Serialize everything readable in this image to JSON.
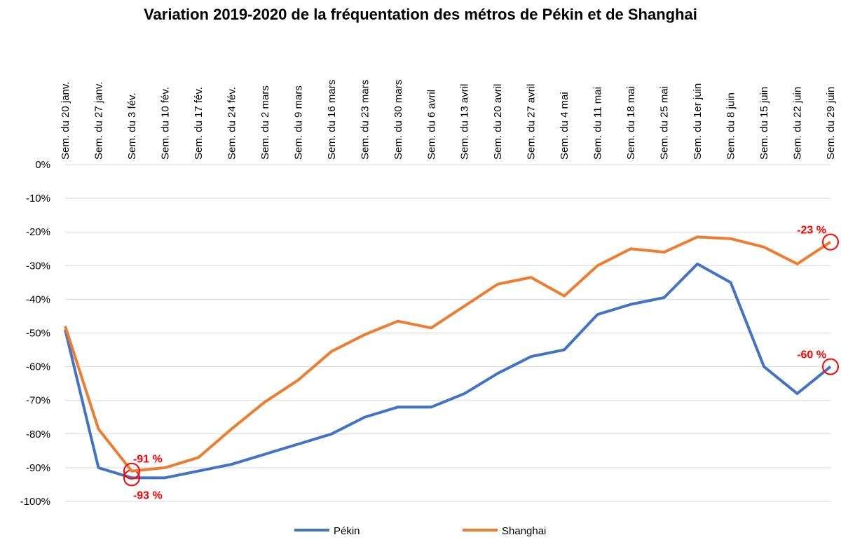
{
  "chart_data": {
    "type": "line",
    "title": "Variation 2019-2020 de la fréquentation des métros de Pékin et de Shanghai",
    "categories": [
      "Sem. du 20 janv.",
      "Sem. du 27 janv.",
      "Sem. du 3 fév.",
      "Sem. du 10 fév.",
      "Sem. du 17 fév.",
      "Sem. du 24 fév.",
      "Sem. du 2 mars",
      "Sem. du 9 mars",
      "Sem. du 16 mars",
      "Sem. du 23 mars",
      "Sem. du 30 mars",
      "Sem. du 6 avril",
      "Sem. du 13 avril",
      "Sem. du 20 avril",
      "Sem. du 27 avril",
      "Sem. du 4 mai",
      "Sem. du 11 mai",
      "Sem. du 18 mai",
      "Sem. du 25 mai",
      "Sem. du 1er juin",
      "Sem. du 8 juin",
      "Sem. du 15 juin",
      "Sem. du 22 juin",
      "Sem. du 29 juin"
    ],
    "series": [
      {
        "name": "Pékin",
        "color": "#4472c4",
        "values": [
          -49,
          -90,
          -93,
          -93,
          -91,
          -89,
          -86,
          -83,
          -80,
          -75,
          -72,
          -72,
          -68,
          -62,
          -57,
          -55,
          -44.5,
          -41.5,
          -39.5,
          -29.5,
          -35,
          -60,
          -68,
          -60
        ],
        "value_labels": [
          null,
          null,
          "-93 %",
          null,
          null,
          null,
          null,
          null,
          null,
          null,
          null,
          null,
          null,
          null,
          null,
          null,
          null,
          null,
          null,
          null,
          null,
          null,
          null,
          "-60 %"
        ]
      },
      {
        "name": "Shanghai",
        "color": "#ed7d31",
        "values": [
          -48,
          -78.5,
          -91,
          -90,
          -87,
          -78.5,
          -70.5,
          -64,
          -55.5,
          -50.5,
          -46.5,
          -48.5,
          -42,
          -35.5,
          -33.5,
          -39,
          -30,
          -25,
          -26,
          -21.5,
          -22,
          -24.5,
          -29.5,
          -23
        ],
        "value_labels": [
          null,
          null,
          "-91 %",
          null,
          null,
          null,
          null,
          null,
          null,
          null,
          null,
          null,
          null,
          null,
          null,
          null,
          null,
          null,
          null,
          null,
          null,
          null,
          null,
          "-23 %"
        ]
      }
    ],
    "ylim": [
      -100,
      0
    ],
    "yticks": [
      {
        "value": -100,
        "label": "-100%"
      },
      {
        "value": -90,
        "label": "-90%"
      },
      {
        "value": -80,
        "label": "-80%"
      },
      {
        "value": -70,
        "label": "-70%"
      },
      {
        "value": -60,
        "label": "-60%"
      },
      {
        "value": -50,
        "label": "-50%"
      },
      {
        "value": -40,
        "label": "-40%"
      },
      {
        "value": -30,
        "label": "-30%"
      },
      {
        "value": -20,
        "label": "-20%"
      },
      {
        "value": -10,
        "label": "-10%"
      },
      {
        "value": 0,
        "label": "0%"
      }
    ],
    "grid": true,
    "legend": "bottom"
  }
}
